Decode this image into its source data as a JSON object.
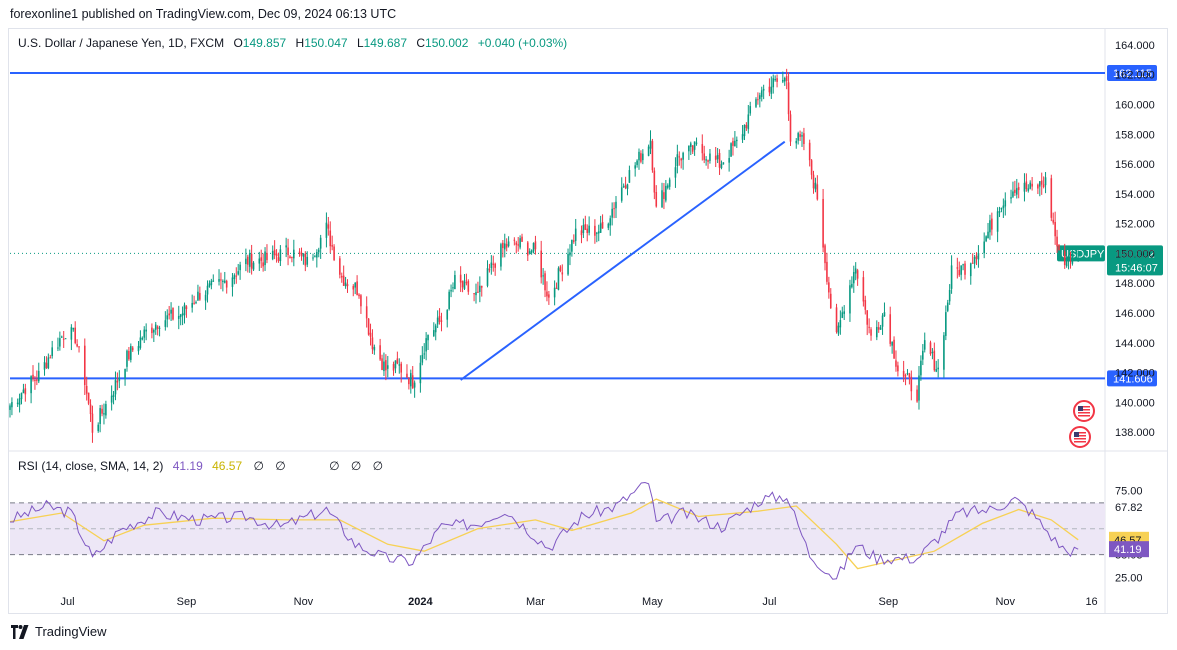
{
  "header": {
    "published": "forexonline1 published on TradingView.com, Dec 09, 2024 06:13 UTC"
  },
  "legend": {
    "symbol": "U.S. Dollar / Japanese Yen, 1D, FXCM",
    "o_label": "O",
    "o": "149.857",
    "h_label": "H",
    "h": "150.047",
    "l_label": "L",
    "l": "149.687",
    "c_label": "C",
    "c": "150.002",
    "change": "+0.040 (+0.03%)"
  },
  "rsi_legend": {
    "label": "RSI (14, close, SMA, 14, 2)",
    "rsi": "41.19",
    "sma": "46.57",
    "na": [
      "∅",
      "∅",
      "∅",
      "∅",
      "∅"
    ]
  },
  "footer": {
    "brand": "TradingView"
  },
  "colors": {
    "up": "#089981",
    "down": "#f23645",
    "line": "#2962ff",
    "rsi": "#7e57c2",
    "rsi_sma": "#f7d154",
    "band": "#ede7f6"
  },
  "chart_data": [
    {
      "type": "candlestick",
      "title": "U.S. Dollar / Japanese Yen, 1D, FXCM",
      "symbol_badge": "USDJPY",
      "last_price": "150.002",
      "countdown": "15:46:07",
      "ylim": [
        136.8,
        165
      ],
      "y_ticks": [
        "164.000",
        "162.000",
        "160.000",
        "158.000",
        "156.000",
        "154.000",
        "152.000",
        "150.000",
        "148.000",
        "146.000",
        "144.000",
        "142.000",
        "140.000",
        "138.000"
      ],
      "x_ticks": [
        "Jul",
        "Sep",
        "Nov",
        "2024",
        "Mar",
        "May",
        "Jul",
        "Sep",
        "Nov",
        "16"
      ],
      "x_tick_dates": [
        "2023-07-01",
        "2023-09-01",
        "2023-11-01",
        "2024-01-01",
        "2024-03-01",
        "2024-05-01",
        "2024-07-01",
        "2024-09-01",
        "2024-11-01",
        "2024-12-16"
      ],
      "x_start": "2023-06-01",
      "x_end": "2024-12-23",
      "horizontal_lines": [
        {
          "value": 162.115,
          "label": "162.115"
        },
        {
          "value": 141.606,
          "label": "141.606"
        }
      ],
      "trend_line": {
        "from": {
          "date": "2024-01-22",
          "value": 141.5
        },
        "to": {
          "date": "2024-07-09",
          "value": 157.5
        }
      },
      "path": [
        {
          "date": "2023-06-01",
          "close": 139.8
        },
        {
          "date": "2023-06-09",
          "close": 141.0
        },
        {
          "date": "2023-06-16",
          "close": 141.8
        },
        {
          "date": "2023-06-23",
          "close": 143.5
        },
        {
          "date": "2023-06-30",
          "close": 144.8
        },
        {
          "date": "2023-07-05",
          "close": 144.4
        },
        {
          "date": "2023-07-10",
          "close": 141.5
        },
        {
          "date": "2023-07-14",
          "close": 138.2
        },
        {
          "date": "2023-07-19",
          "close": 139.3
        },
        {
          "date": "2023-07-25",
          "close": 140.9
        },
        {
          "date": "2023-08-01",
          "close": 143.0
        },
        {
          "date": "2023-08-10",
          "close": 144.6
        },
        {
          "date": "2023-08-18",
          "close": 145.5
        },
        {
          "date": "2023-08-29",
          "close": 145.9
        },
        {
          "date": "2023-09-08",
          "close": 147.3
        },
        {
          "date": "2023-09-20",
          "close": 148.0
        },
        {
          "date": "2023-10-03",
          "close": 149.5
        },
        {
          "date": "2023-10-13",
          "close": 149.6
        },
        {
          "date": "2023-10-25",
          "close": 150.2
        },
        {
          "date": "2023-11-03",
          "close": 149.4
        },
        {
          "date": "2023-11-13",
          "close": 151.7
        },
        {
          "date": "2023-11-21",
          "close": 148.4
        },
        {
          "date": "2023-11-30",
          "close": 147.5
        },
        {
          "date": "2023-12-07",
          "close": 144.0
        },
        {
          "date": "2023-12-14",
          "close": 142.2
        },
        {
          "date": "2023-12-21",
          "close": 142.4
        },
        {
          "date": "2023-12-28",
          "close": 141.4
        },
        {
          "date": "2024-01-05",
          "close": 144.6
        },
        {
          "date": "2024-01-12",
          "close": 145.5
        },
        {
          "date": "2024-01-19",
          "close": 148.1
        },
        {
          "date": "2024-01-31",
          "close": 147.1
        },
        {
          "date": "2024-02-08",
          "close": 149.3
        },
        {
          "date": "2024-02-14",
          "close": 150.5
        },
        {
          "date": "2024-02-22",
          "close": 150.6
        },
        {
          "date": "2024-03-01",
          "close": 150.1
        },
        {
          "date": "2024-03-08",
          "close": 147.0
        },
        {
          "date": "2024-03-15",
          "close": 149.1
        },
        {
          "date": "2024-03-22",
          "close": 151.4
        },
        {
          "date": "2024-04-05",
          "close": 151.6
        },
        {
          "date": "2024-04-16",
          "close": 154.7
        },
        {
          "date": "2024-04-26",
          "close": 156.8
        },
        {
          "date": "2024-04-30",
          "close": 157.7
        },
        {
          "date": "2024-05-03",
          "close": 152.9
        },
        {
          "date": "2024-05-14",
          "close": 156.4
        },
        {
          "date": "2024-05-24",
          "close": 157.1
        },
        {
          "date": "2024-06-05",
          "close": 156.0
        },
        {
          "date": "2024-06-14",
          "close": 157.4
        },
        {
          "date": "2024-06-26",
          "close": 160.8
        },
        {
          "date": "2024-07-03",
          "close": 161.4
        },
        {
          "date": "2024-07-10",
          "close": 161.7
        },
        {
          "date": "2024-07-12",
          "close": 157.9
        },
        {
          "date": "2024-07-19",
          "close": 157.4
        },
        {
          "date": "2024-07-26",
          "close": 153.8
        },
        {
          "date": "2024-08-02",
          "close": 146.5
        },
        {
          "date": "2024-08-05",
          "close": 144.2
        },
        {
          "date": "2024-08-09",
          "close": 146.6
        },
        {
          "date": "2024-08-15",
          "close": 149.2
        },
        {
          "date": "2024-08-23",
          "close": 144.3
        },
        {
          "date": "2024-08-30",
          "close": 146.1
        },
        {
          "date": "2024-09-06",
          "close": 142.3
        },
        {
          "date": "2024-09-16",
          "close": 140.6
        },
        {
          "date": "2024-09-20",
          "close": 143.9
        },
        {
          "date": "2024-09-27",
          "close": 142.2
        },
        {
          "date": "2024-10-04",
          "close": 148.7
        },
        {
          "date": "2024-10-11",
          "close": 149.1
        },
        {
          "date": "2024-10-21",
          "close": 150.8
        },
        {
          "date": "2024-10-29",
          "close": 153.3
        },
        {
          "date": "2024-11-06",
          "close": 154.5
        },
        {
          "date": "2024-11-15",
          "close": 154.3
        },
        {
          "date": "2024-11-22",
          "close": 154.8
        },
        {
          "date": "2024-11-29",
          "close": 149.8
        },
        {
          "date": "2024-12-03",
          "close": 149.6
        },
        {
          "date": "2024-12-09",
          "close": 150.0
        }
      ]
    },
    {
      "type": "line",
      "title": "RSI (14, close, SMA, 14, 2)",
      "ylim": [
        20,
        85
      ],
      "levels": [
        {
          "value": 67.82,
          "label": "67.82"
        },
        {
          "value": 38.03,
          "label": "38.03"
        }
      ],
      "y_ticks": [
        "75.00",
        "25.00"
      ],
      "last_values": {
        "rsi": "41.19",
        "sma": "46.57"
      },
      "rsi_path": [
        {
          "date": "2023-06-01",
          "value": 58
        },
        {
          "date": "2023-06-20",
          "value": 66
        },
        {
          "date": "2023-07-03",
          "value": 62
        },
        {
          "date": "2023-07-14",
          "value": 36
        },
        {
          "date": "2023-07-28",
          "value": 52
        },
        {
          "date": "2023-08-16",
          "value": 62
        },
        {
          "date": "2023-09-08",
          "value": 58
        },
        {
          "date": "2023-10-02",
          "value": 60
        },
        {
          "date": "2023-10-20",
          "value": 54
        },
        {
          "date": "2023-11-13",
          "value": 64
        },
        {
          "date": "2023-11-28",
          "value": 44
        },
        {
          "date": "2023-12-14",
          "value": 36
        },
        {
          "date": "2023-12-28",
          "value": 34
        },
        {
          "date": "2024-01-12",
          "value": 54
        },
        {
          "date": "2024-01-31",
          "value": 56
        },
        {
          "date": "2024-02-14",
          "value": 64
        },
        {
          "date": "2024-03-08",
          "value": 42
        },
        {
          "date": "2024-03-25",
          "value": 60
        },
        {
          "date": "2024-04-12",
          "value": 66
        },
        {
          "date": "2024-04-29",
          "value": 80
        },
        {
          "date": "2024-05-03",
          "value": 56
        },
        {
          "date": "2024-05-17",
          "value": 62
        },
        {
          "date": "2024-06-06",
          "value": 54
        },
        {
          "date": "2024-06-27",
          "value": 70
        },
        {
          "date": "2024-07-10",
          "value": 72
        },
        {
          "date": "2024-07-22",
          "value": 38
        },
        {
          "date": "2024-08-05",
          "value": 24
        },
        {
          "date": "2024-08-15",
          "value": 44
        },
        {
          "date": "2024-08-26",
          "value": 36
        },
        {
          "date": "2024-09-16",
          "value": 36
        },
        {
          "date": "2024-09-27",
          "value": 48
        },
        {
          "date": "2024-10-08",
          "value": 62
        },
        {
          "date": "2024-10-24",
          "value": 64
        },
        {
          "date": "2024-11-06",
          "value": 70
        },
        {
          "date": "2024-11-15",
          "value": 62
        },
        {
          "date": "2024-11-27",
          "value": 46
        },
        {
          "date": "2024-12-03",
          "value": 40
        },
        {
          "date": "2024-12-09",
          "value": 41.19
        }
      ],
      "sma_path": [
        {
          "date": "2023-06-01",
          "value": 57
        },
        {
          "date": "2023-06-28",
          "value": 62
        },
        {
          "date": "2023-07-20",
          "value": 46
        },
        {
          "date": "2023-08-10",
          "value": 55
        },
        {
          "date": "2023-09-15",
          "value": 59
        },
        {
          "date": "2023-10-25",
          "value": 58
        },
        {
          "date": "2023-11-20",
          "value": 58
        },
        {
          "date": "2023-12-15",
          "value": 44
        },
        {
          "date": "2024-01-03",
          "value": 40
        },
        {
          "date": "2024-01-31",
          "value": 53
        },
        {
          "date": "2024-03-01",
          "value": 58
        },
        {
          "date": "2024-03-20",
          "value": 52
        },
        {
          "date": "2024-04-20",
          "value": 62
        },
        {
          "date": "2024-05-03",
          "value": 70
        },
        {
          "date": "2024-05-25",
          "value": 60
        },
        {
          "date": "2024-06-25",
          "value": 63
        },
        {
          "date": "2024-07-15",
          "value": 66
        },
        {
          "date": "2024-08-05",
          "value": 44
        },
        {
          "date": "2024-08-16",
          "value": 30
        },
        {
          "date": "2024-09-05",
          "value": 35
        },
        {
          "date": "2024-09-25",
          "value": 40
        },
        {
          "date": "2024-10-20",
          "value": 56
        },
        {
          "date": "2024-11-08",
          "value": 64
        },
        {
          "date": "2024-11-25",
          "value": 58
        },
        {
          "date": "2024-12-09",
          "value": 46.57
        }
      ]
    }
  ]
}
